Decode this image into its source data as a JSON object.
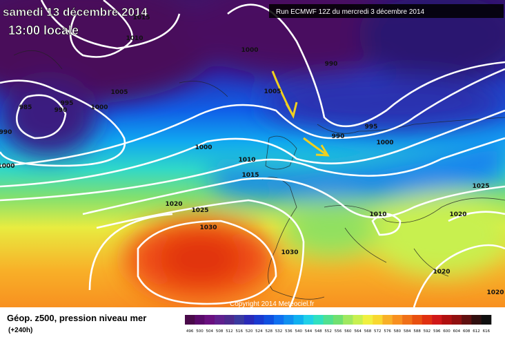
{
  "header": {
    "date": "samedi 13 décembre 2014",
    "time": "13:00 locale",
    "run": "Run ECMWF 12Z du mercredi 3 décembre 2014"
  },
  "isobar_labels": [
    "1015",
    "1010",
    "1000",
    "990",
    "1005",
    "1005",
    "985",
    "995",
    "990",
    "1000",
    "990",
    "995",
    "990",
    "1000",
    "1000",
    "1010",
    "1015",
    "1000",
    "1025",
    "1020",
    "1025",
    "1030",
    "1010",
    "1020",
    "1030",
    "1020",
    "1020"
  ],
  "copyright": "Copyright 2014 Meteociel.fr",
  "legend": {
    "title": "Géop. z500, pression niveau mer",
    "subtitle": "(+240h)"
  },
  "colorbar": {
    "labels": [
      "496",
      "500",
      "504",
      "508",
      "512",
      "516",
      "520",
      "524",
      "528",
      "532",
      "536",
      "540",
      "544",
      "548",
      "552",
      "556",
      "560",
      "564",
      "568",
      "572",
      "576",
      "580",
      "584",
      "588",
      "592",
      "596",
      "600",
      "604",
      "608",
      "612",
      "616"
    ],
    "colors": [
      "#4a0a4a",
      "#5a0a6a",
      "#6a1080",
      "#60208e",
      "#4c2a8e",
      "#3a3aa0",
      "#2a2ab8",
      "#1a3ad0",
      "#1050e0",
      "#1070f0",
      "#1090f0",
      "#10b0f0",
      "#20d0e8",
      "#30e0c0",
      "#50e090",
      "#70e070",
      "#a0e860",
      "#c8f050",
      "#f0f040",
      "#f8d830",
      "#f8b028",
      "#f89020",
      "#f07018",
      "#e85010",
      "#e03010",
      "#d01818",
      "#b01010",
      "#901010",
      "#601010",
      "#301010",
      "#101010"
    ]
  }
}
